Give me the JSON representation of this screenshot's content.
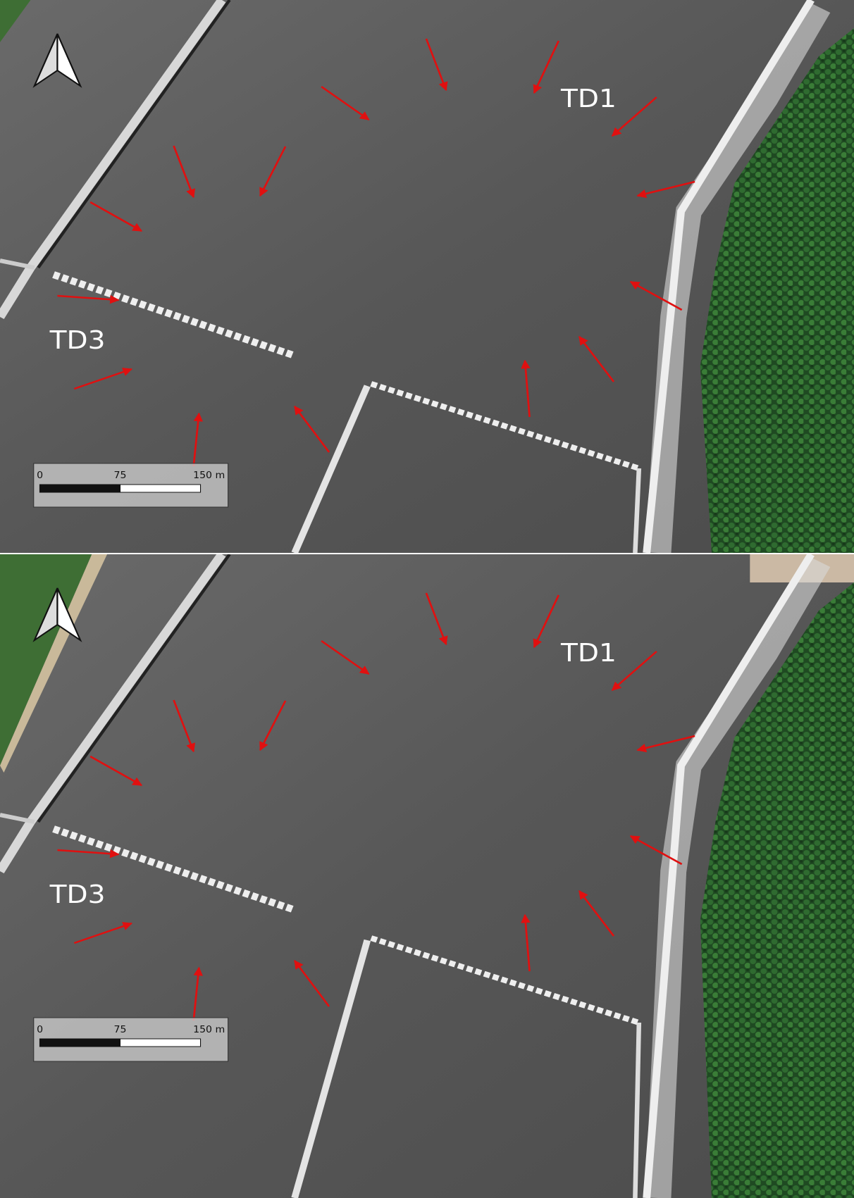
{
  "panels": [
    {
      "labels": [
        "TD1",
        "TD3"
      ],
      "scale_bar": {
        "ticks": [
          "0",
          "75",
          "150 m"
        ]
      }
    },
    {
      "labels": [
        "TD1",
        "TD3"
      ],
      "scale_bar": {
        "ticks": [
          "0",
          "75",
          "150 m"
        ]
      }
    }
  ]
}
